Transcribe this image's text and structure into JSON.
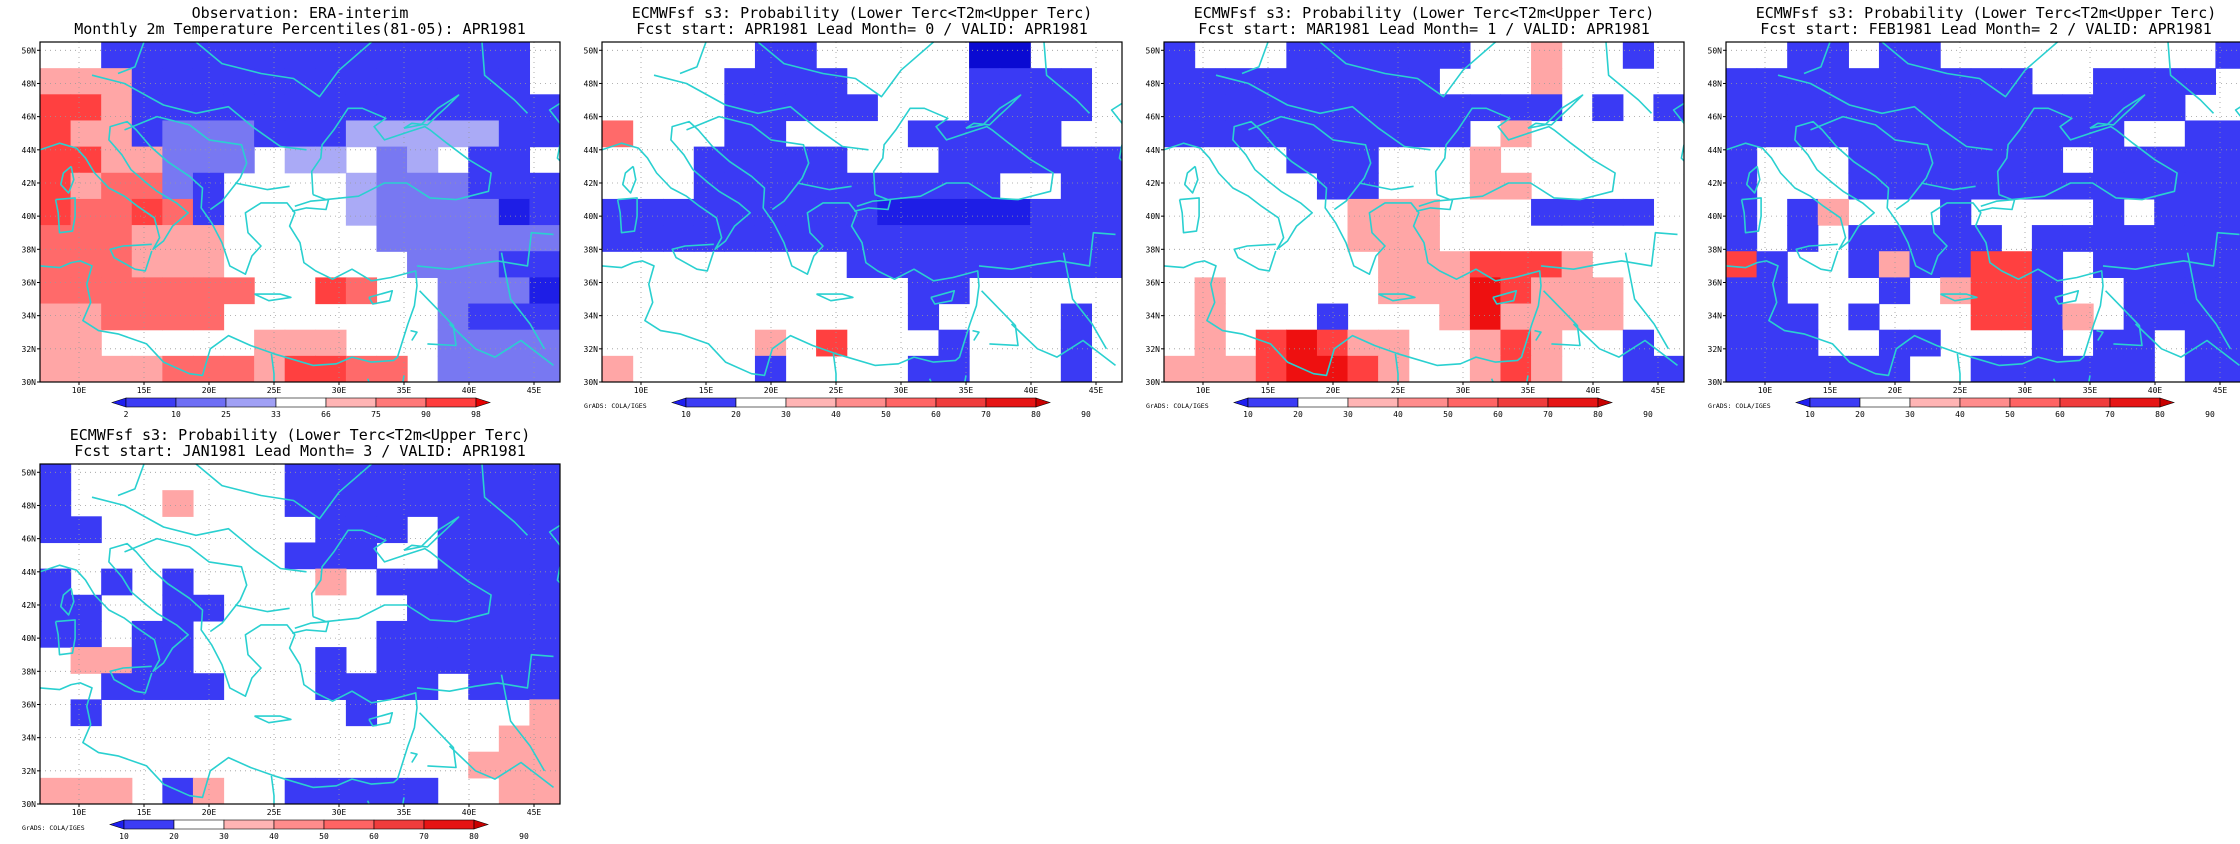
{
  "chart_data": [
    {
      "type": "heatmap",
      "title_line1": "Observation: ERA-interim",
      "title_line2": "Monthly 2m Temperature Percentiles(81-05): APR1981",
      "scale": "obs",
      "x_ticks": [
        "10E",
        "15E",
        "20E",
        "25E",
        "30E",
        "35E",
        "40E",
        "45E"
      ],
      "y_ticks": [
        "30N",
        "32N",
        "34N",
        "36N",
        "38N",
        "40N",
        "42N",
        "44N",
        "46N",
        "48N",
        "50N"
      ],
      "xlim": [
        7,
        47
      ],
      "ylim": [
        30,
        50.5
      ],
      "colorbar_labels": [
        "2",
        "10",
        "25",
        "33",
        "66",
        "75",
        "90",
        "98"
      ],
      "colorbar_colors": [
        "#1e1ef0",
        "#3c3cf5",
        "#6e6ef5",
        "#a0a0f5",
        "#ffffff",
        "#ffb4b4",
        "#ff7878",
        "#ff3c3c",
        "#e60000"
      ],
      "credit": "",
      "grid": [
        "00CCCCCCCCCCCCCC0",
        "qqqCCCCCCCCCCCCC0",
        "rrqCCCCCCCCCCCCCC",
        "rqqCDDDCCCEEEEECC",
        "rrqqDDD0EE0DE0CC0",
        "rqppDC0000EDDDCCC",
        "rpprpC0000EDDDDBC",
        "pppqqq00000DDDDDD",
        "pppqqq000000DDDCC",
        "ppppppp00rp00DDDB",
        "qqpppp0000000DCCC",
        "qq00000qqq000DDDD",
        "qqqqpppqrrpp0DDDD"
      ]
    },
    {
      "type": "heatmap",
      "title_line1": "ECMWFsf s3: Probability (Lower Terc<T2m<Upper Terc)",
      "title_line2": "Fcst start: APR1981   Lead Month= 0 / VALID: APR1981",
      "scale": "prob",
      "x_ticks": [
        "10E",
        "15E",
        "20E",
        "25E",
        "30E",
        "35E",
        "40E",
        "45E"
      ],
      "y_ticks": [
        "30N",
        "32N",
        "34N",
        "36N",
        "38N",
        "40N",
        "42N",
        "44N",
        "46N",
        "48N",
        "50N"
      ],
      "xlim": [
        7,
        47
      ],
      "ylim": [
        30,
        50.5
      ],
      "colorbar_labels": [
        "10",
        "20",
        "30",
        "40",
        "50",
        "60",
        "70",
        "80",
        "90"
      ],
      "colorbar_colors": [
        "#1e1ef0",
        "#3c3cf5",
        "#ffffff",
        "#ffb4b4",
        "#ff8c8c",
        "#ff6464",
        "#f03c3c",
        "#e61414",
        "#c80000"
      ],
      "credit": "GrADS: COLA/IGES",
      "grid": [
        "00000CC00000AA000",
        "0000CCCC0000CCCC0",
        "0000CCCCC000CCCC0",
        "p000CC0000CCCCC00",
        "000CCCCC000CCCCCC",
        "000CCCCCCCCCC00CC",
        "CCCCCCCCCBBBBBCCC",
        "CCCCCCCCCCCCCCCCC",
        "00000000CCCCCCCCC",
        "0000000000CC00000",
        "0000000000C0000C0",
        "00000q0r000C000C0",
        "q0000C0000CC000C0"
      ]
    },
    {
      "type": "heatmap",
      "title_line1": "ECMWFsf s3: Probability (Lower Terc<T2m<Upper Terc)",
      "title_line2": "Fcst start: MAR1981   Lead Month= 1 / VALID: APR1981",
      "scale": "prob",
      "x_ticks": [
        "10E",
        "15E",
        "20E",
        "25E",
        "30E",
        "35E",
        "40E",
        "45E"
      ],
      "y_ticks": [
        "30N",
        "32N",
        "34N",
        "36N",
        "38N",
        "40N",
        "42N",
        "44N",
        "46N",
        "48N",
        "50N"
      ],
      "xlim": [
        7,
        47
      ],
      "ylim": [
        30,
        50.5
      ],
      "colorbar_labels": [
        "10",
        "20",
        "30",
        "40",
        "50",
        "60",
        "70",
        "80",
        "90"
      ],
      "colorbar_colors": [
        "#1e1ef0",
        "#3c3cf5",
        "#ffffff",
        "#ffb4b4",
        "#ff8c8c",
        "#ff6464",
        "#f03c3c",
        "#e61414",
        "#c80000"
      ],
      "credit": "GrADS: COLA/IGES",
      "grid": [
        "C000CCCCCC00q00C0",
        "CCCCCCCCC000q0000",
        "CCCCCCCCCCCCC0C0C",
        "CCCCCCCCCC0q00000",
        "0000CCC000q000000",
        "00000CC000qq00000",
        "000000qqq000CCCC0",
        "000000qqq00000000",
        "0000000qqqrrrq000",
        "0q00000qqqsrqqq00",
        "0q000C000qsqqqq00",
        "0q0rsrqq00qrq00C0",
        "qqqrssrq00qrq00CC"
      ]
    },
    {
      "type": "heatmap",
      "title_line1": "ECMWFsf s3: Probability (Lower Terc<T2m<Upper Terc)",
      "title_line2": "Fcst start: FEB1981   Lead Month= 2 / VALID: APR1981",
      "scale": "prob",
      "x_ticks": [
        "10E",
        "15E",
        "20E",
        "25E",
        "30E",
        "35E",
        "40E",
        "45E"
      ],
      "y_ticks": [
        "30N",
        "32N",
        "34N",
        "36N",
        "38N",
        "40N",
        "42N",
        "44N",
        "46N",
        "48N",
        "50N"
      ],
      "xlim": [
        7,
        47
      ],
      "ylim": [
        30,
        50.5
      ],
      "colorbar_labels": [
        "10",
        "20",
        "30",
        "40",
        "50",
        "60",
        "70",
        "80",
        "90"
      ],
      "colorbar_colors": [
        "#1e1ef0",
        "#3c3cf5",
        "#ffffff",
        "#ffb4b4",
        "#ff8c8c",
        "#ff6464",
        "#f03c3c",
        "#e61414",
        "#c80000"
      ],
      "credit": "GrADS: COLA/IGES",
      "grid": [
        "00CC0CC000000000C",
        "CCCCCCCCCC00CCCC0",
        "CCCCCCCCCCCCCCC00",
        "CCCCCCCCCCCCC00CC",
        "C000CCCCCCC0CCCCC",
        "C000CCCCCCCCCCCCC",
        "C0Cq000C0000C0CCC",
        "C0C0CCCCC0CCCCCCC",
        "rC00CqCCrrC0CCCCC",
        "CC000C0qrrC00CCCC",
        "CCC0C000rrCq0CCCC",
        "CCC00CC000C0CC0CC",
        "CCCCCC00CCCCCC0CC"
      ]
    },
    {
      "type": "heatmap",
      "title_line1": "ECMWFsf s3: Probability (Lower Terc<T2m<Upper Terc)",
      "title_line2": "Fcst start: JAN1981   Lead Month= 3 / VALID: APR1981",
      "scale": "prob",
      "x_ticks": [
        "10E",
        "15E",
        "20E",
        "25E",
        "30E",
        "35E",
        "40E",
        "45E"
      ],
      "y_ticks": [
        "30N",
        "32N",
        "34N",
        "36N",
        "38N",
        "40N",
        "42N",
        "44N",
        "46N",
        "48N",
        "50N"
      ],
      "xlim": [
        7,
        47
      ],
      "ylim": [
        30,
        50.5
      ],
      "colorbar_labels": [
        "10",
        "20",
        "30",
        "40",
        "50",
        "60",
        "70",
        "80",
        "90"
      ],
      "colorbar_colors": [
        "#1e1ef0",
        "#3c3cf5",
        "#ffffff",
        "#ffb4b4",
        "#ff8c8c",
        "#ff6464",
        "#f03c3c",
        "#e61414",
        "#c80000"
      ],
      "credit": "GrADS: COLA/IGES",
      "grid": [
        "C0000000CCCCCCCCC",
        "C000q000CCCCCCCCC",
        "CC0000000CCC0CCCC",
        "00000000CCC00CCCC",
        "C0C0C0000q0CCCCCC",
        "CC00CC000000CCCCC",
        "CC0CC000000CCCCCC",
        "0qqCC0000C0CCCCCC",
        "00CCCC000CCCC0CCC",
        "0C00000000C00000q",
        "000000000000000qq",
        "00000000000000qqq",
        "qqq0Cq00CCCCC00qq"
      ]
    }
  ]
}
